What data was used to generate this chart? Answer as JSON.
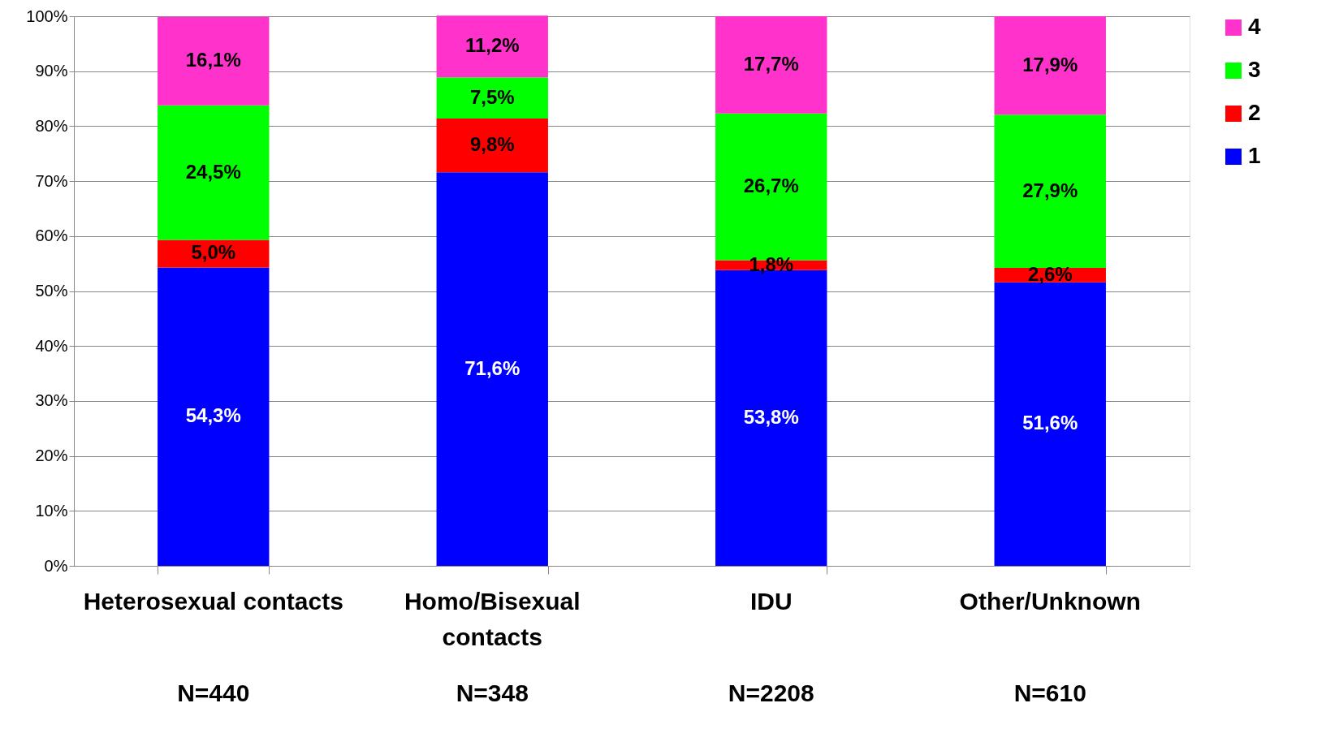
{
  "chart_data": {
    "type": "bar",
    "stacked": true,
    "categories": [
      "Heterosexual contacts",
      "Homo/Bisexual contacts",
      "IDU",
      "Other/Unknown"
    ],
    "series": [
      {
        "name": "1",
        "color": "#0000ff",
        "values": [
          54.3,
          71.6,
          53.8,
          51.6
        ],
        "value_labels": [
          "54,3%",
          "71,6%",
          "53,8%",
          "51,6%"
        ]
      },
      {
        "name": "2",
        "color": "#ff0000",
        "values": [
          5.0,
          9.8,
          1.8,
          2.6
        ],
        "value_labels": [
          "5,0%",
          "9,8%",
          "1,8%",
          "2,6%"
        ]
      },
      {
        "name": "3",
        "color": "#00ff00",
        "values": [
          24.5,
          7.5,
          26.7,
          27.9
        ],
        "value_labels": [
          "24,5%",
          "7,5%",
          "26,7%",
          "27,9%"
        ]
      },
      {
        "name": "4",
        "color": "#ff33cc",
        "values": [
          16.1,
          11.2,
          17.7,
          17.9
        ],
        "value_labels": [
          "16,1%",
          "11,2%",
          "17,7%",
          "17,9%"
        ]
      }
    ],
    "ylim": [
      0,
      100
    ],
    "yticks": [
      {
        "value": 0,
        "label": "0%"
      },
      {
        "value": 10,
        "label": "10%"
      },
      {
        "value": 20,
        "label": "20%"
      },
      {
        "value": 30,
        "label": "30%"
      },
      {
        "value": 40,
        "label": "40%"
      },
      {
        "value": 50,
        "label": "50%"
      },
      {
        "value": 60,
        "label": "60%"
      },
      {
        "value": 70,
        "label": "70%"
      },
      {
        "value": 80,
        "label": "80%"
      },
      {
        "value": 90,
        "label": "90%"
      },
      {
        "value": 100,
        "label": "100%"
      }
    ],
    "grid": "y",
    "legend": "right",
    "annotations": [
      "N=440",
      "N=348",
      "N=2208",
      "N=610"
    ]
  }
}
